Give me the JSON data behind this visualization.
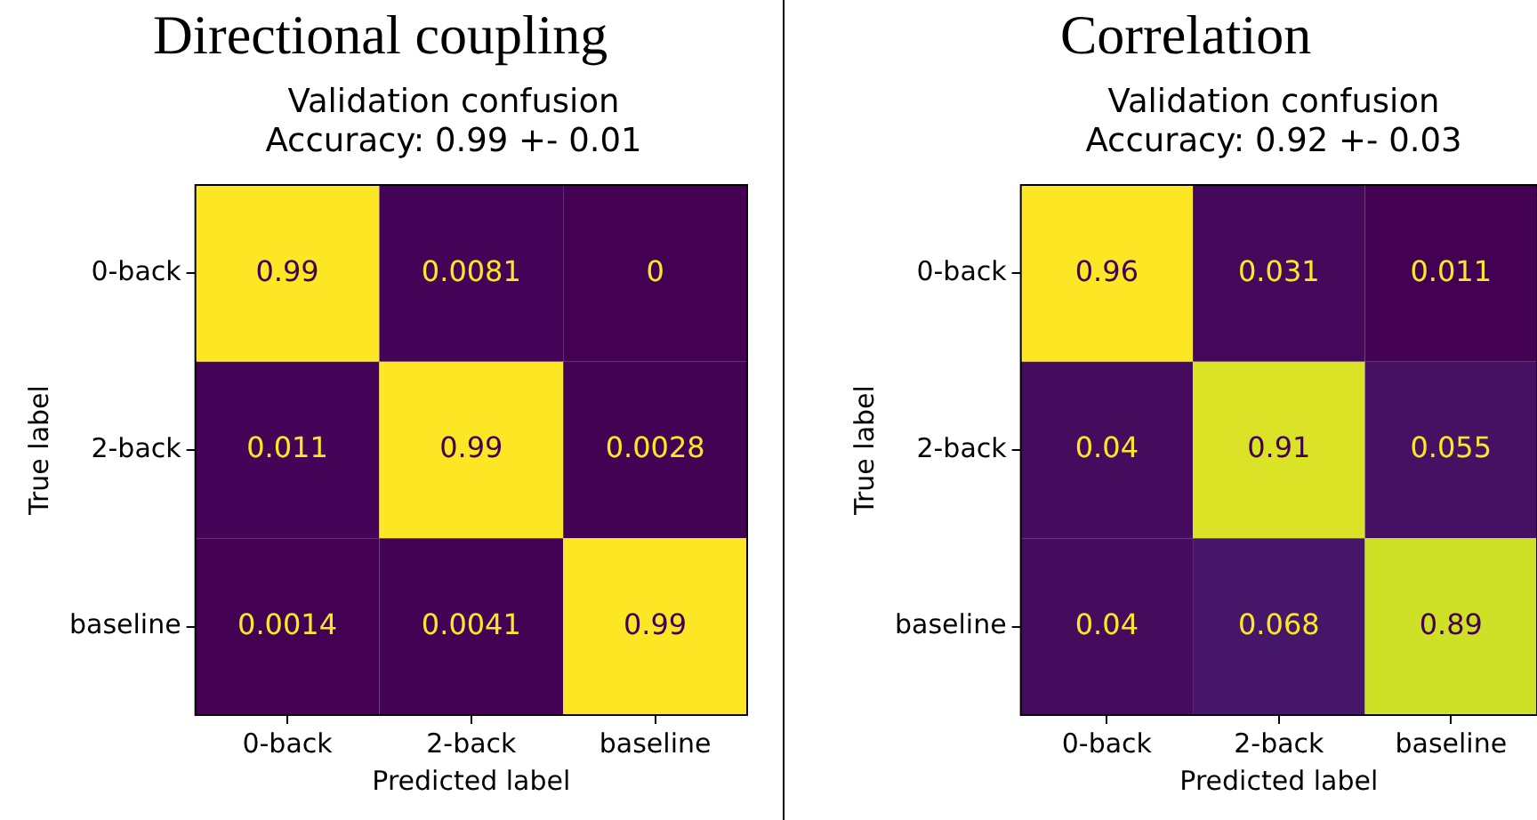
{
  "chart_data": [
    {
      "type": "heatmap",
      "title": "Directional coupling",
      "subtitle": "Validation confusion\nAccuracy: 0.99 +- 0.01",
      "xlabel": "Predicted label",
      "ylabel": "True label",
      "categories": [
        "0-back",
        "2-back",
        "baseline"
      ],
      "y_categories": [
        "0-back",
        "2-back",
        "baseline"
      ],
      "cells": [
        [
          0.99,
          0.0081,
          0
        ],
        [
          0.011,
          0.99,
          0.0028
        ],
        [
          0.0014,
          0.0041,
          0.99
        ]
      ],
      "data_labels": true
    },
    {
      "type": "heatmap",
      "title": "Correlation",
      "subtitle": "Validation confusion\nAccuracy: 0.92 +- 0.03",
      "xlabel": "Predicted label",
      "ylabel": "True label",
      "categories": [
        "0-back",
        "2-back",
        "baseline"
      ],
      "y_categories": [
        "0-back",
        "2-back",
        "baseline"
      ],
      "cells": [
        [
          0.96,
          0.031,
          0.011
        ],
        [
          0.04,
          0.91,
          0.055
        ],
        [
          0.04,
          0.068,
          0.89
        ]
      ],
      "data_labels": true
    }
  ]
}
